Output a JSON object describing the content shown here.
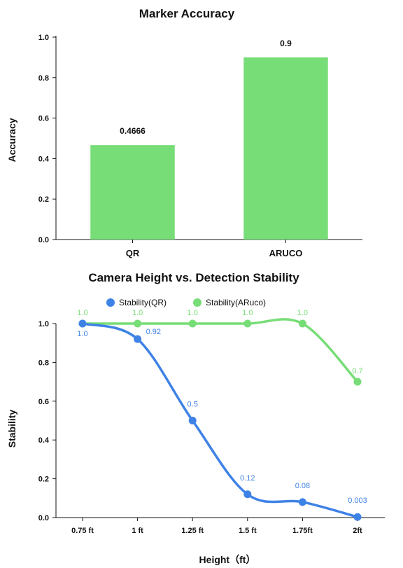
{
  "chart_data": [
    {
      "type": "bar",
      "title": "Marker Accuracy",
      "ylabel": "Accuracy",
      "xlabel": "",
      "categories": [
        "QR",
        "ARUCO"
      ],
      "values": [
        0.4666,
        0.9
      ],
      "value_labels": [
        "0.4666",
        "0.9"
      ],
      "ylim": [
        0,
        1.0
      ],
      "yticks": [
        "0.0",
        "0.2",
        "0.4",
        "0.6",
        "0.8",
        "1.0"
      ],
      "bar_color": "#77dd77",
      "grid": false
    },
    {
      "type": "line",
      "title": "Camera Height vs. Detection Stability",
      "ylabel": "Stability",
      "xlabel": "Height（ft）",
      "x": [
        "0.75 ft",
        "1 ft",
        "1.25 ft",
        "1.5 ft",
        "1.75ft",
        "2ft"
      ],
      "ylim": [
        0,
        1.0
      ],
      "yticks": [
        "0.0",
        "0.2",
        "0.4",
        "0.6",
        "0.8",
        "1.0"
      ],
      "legend_position": "top-center",
      "grid": false,
      "smooth": true,
      "series": [
        {
          "name": "Stability(QR)",
          "color": "#3e82e6",
          "x_index": [
            0,
            1,
            2,
            3,
            4,
            5
          ],
          "values": [
            1.0,
            0.92,
            0.5,
            0.12,
            0.08,
            0.003
          ],
          "labels": [
            "1.0",
            "0.92",
            "0.5",
            "0.12",
            "0.08",
            "0.003"
          ]
        },
        {
          "name": "Stability(ARuco)",
          "color": "#77dd77",
          "x_index": [
            0,
            1,
            2,
            3,
            4,
            5
          ],
          "values": [
            1.0,
            1.0,
            1.0,
            1.0,
            1.0,
            0.7
          ],
          "labels": [
            "1.0",
            "1.0",
            "1.0",
            "1.0",
            "1.0",
            "0.7"
          ]
        }
      ]
    }
  ]
}
